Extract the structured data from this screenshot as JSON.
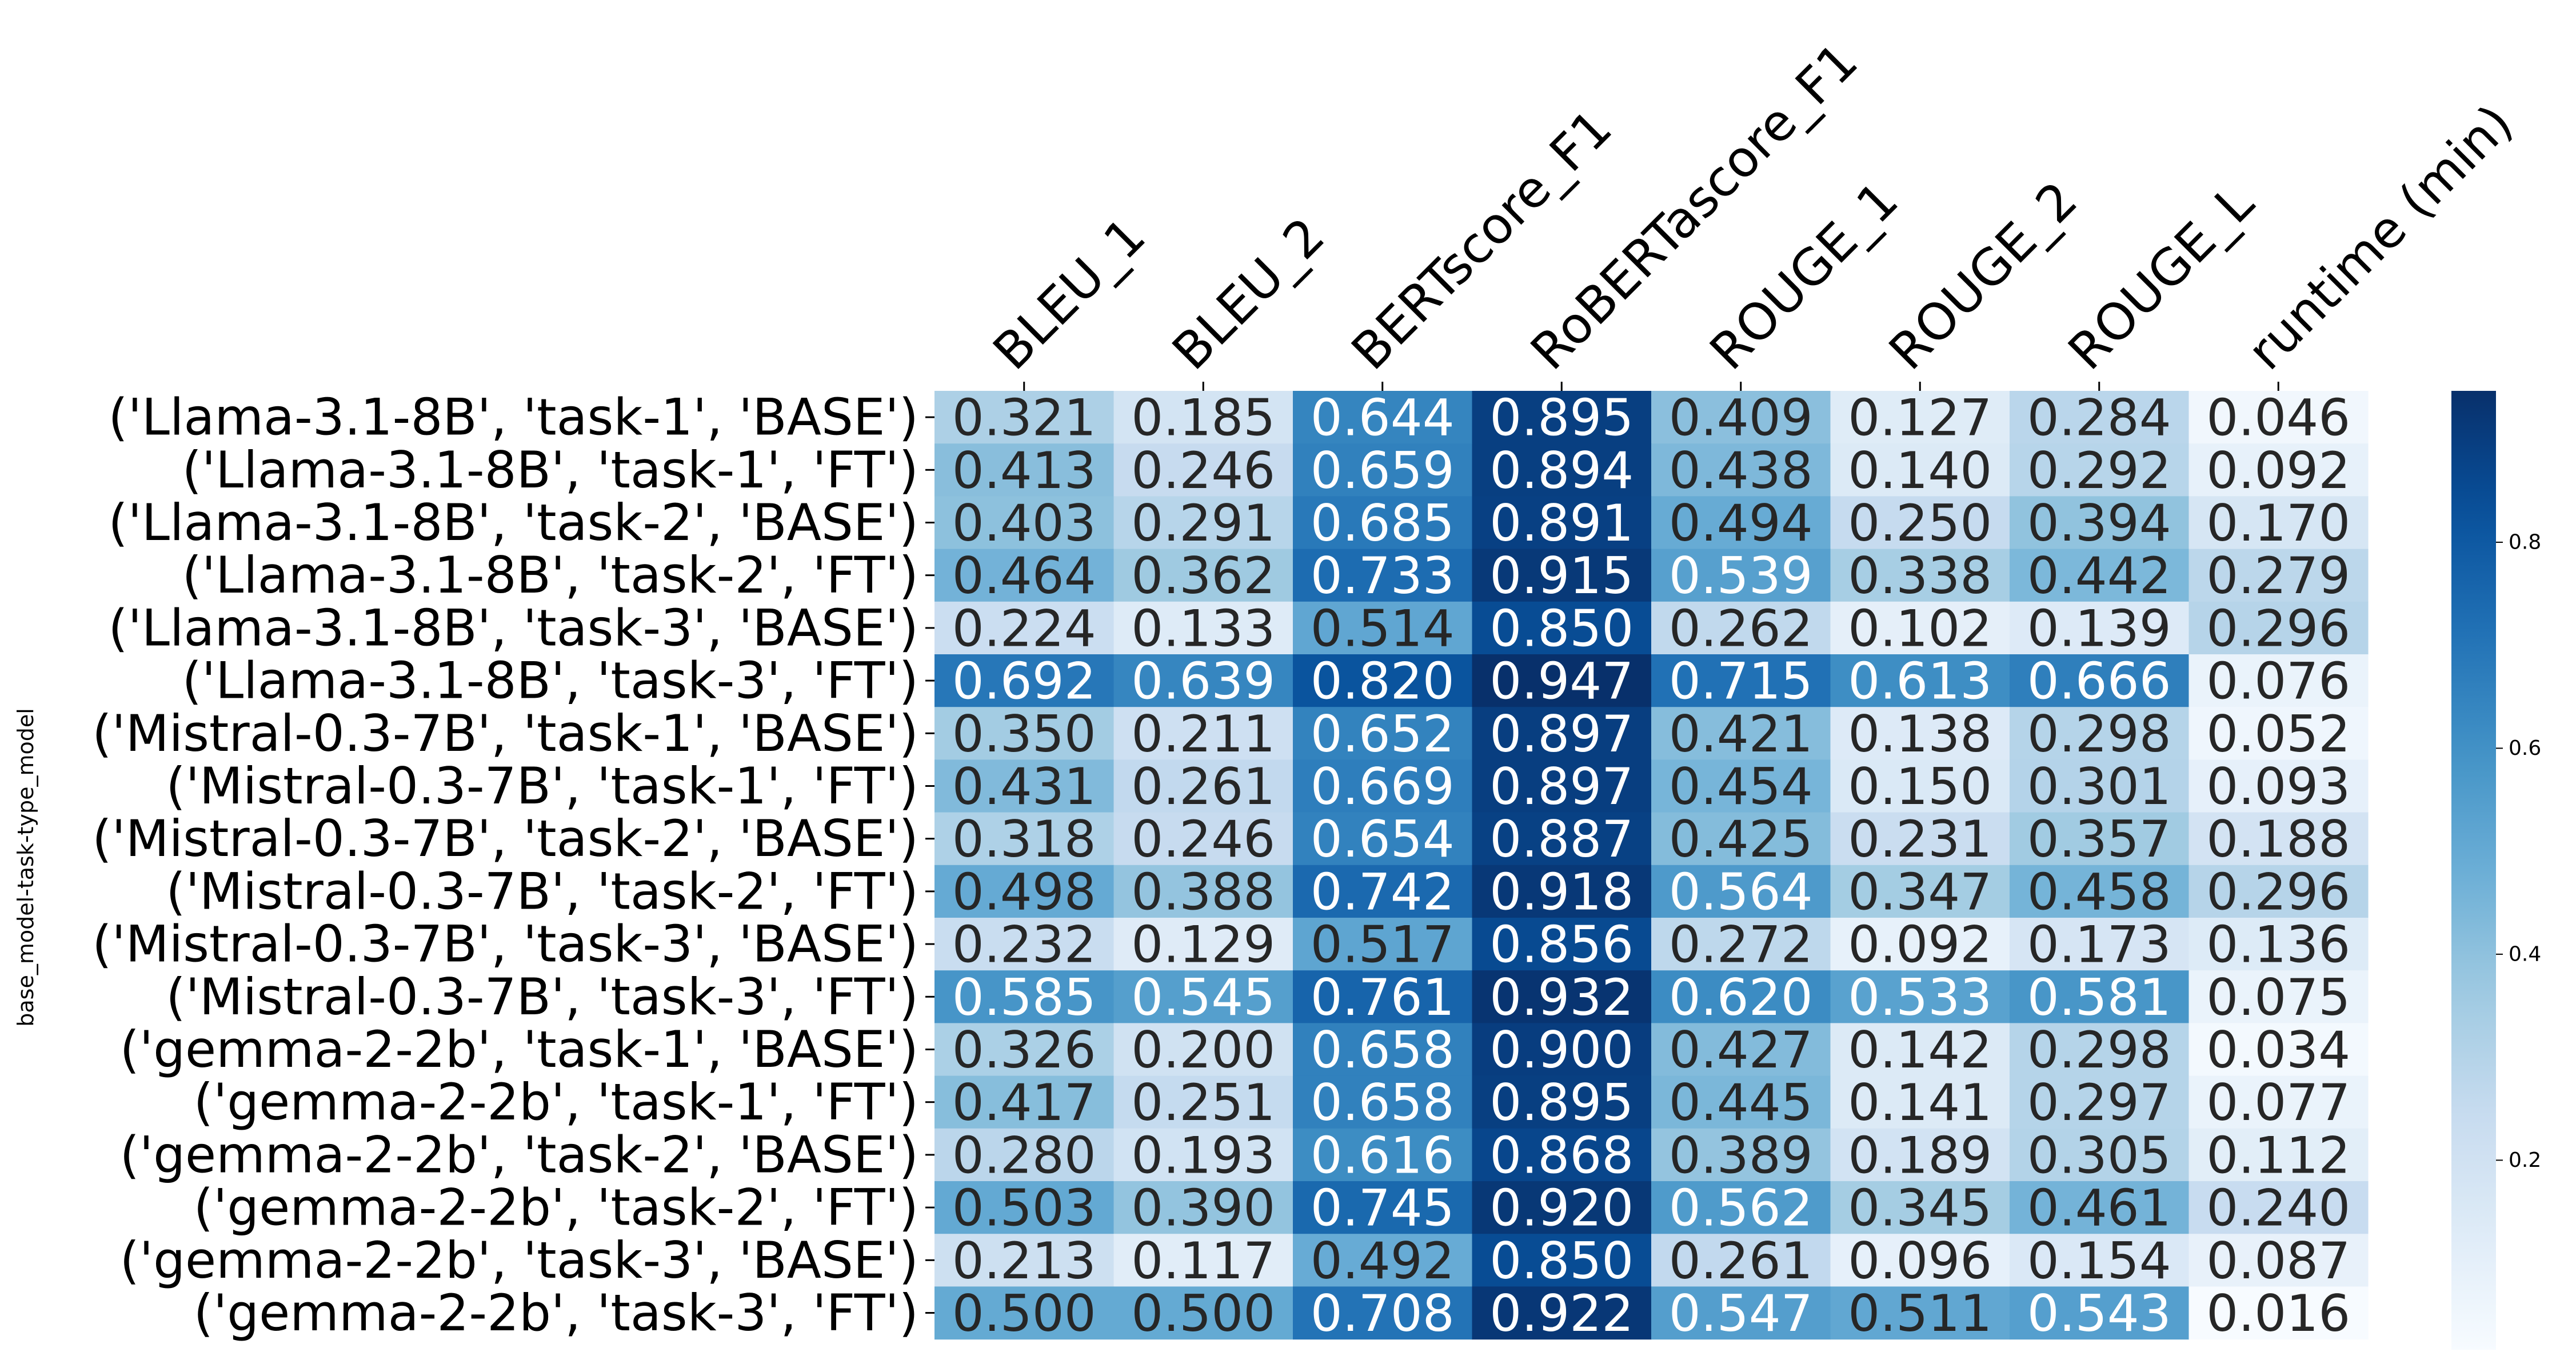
{
  "chart_data": {
    "type": "heatmap",
    "ylabel": "base_model-task-type_model",
    "columns": [
      "BLEU_1",
      "BLEU_2",
      "BERTscore_F1",
      "RoBERTascore_F1",
      "ROUGE_1",
      "ROUGE_2",
      "ROUGE_L",
      "runtime (min)"
    ],
    "rows": [
      "('Llama-3.1-8B', 'task-1', 'BASE')",
      "('Llama-3.1-8B', 'task-1', 'FT')",
      "('Llama-3.1-8B', 'task-2', 'BASE')",
      "('Llama-3.1-8B', 'task-2', 'FT')",
      "('Llama-3.1-8B', 'task-3', 'BASE')",
      "('Llama-3.1-8B', 'task-3', 'FT')",
      "('Mistral-0.3-7B', 'task-1', 'BASE')",
      "('Mistral-0.3-7B', 'task-1', 'FT')",
      "('Mistral-0.3-7B', 'task-2', 'BASE')",
      "('Mistral-0.3-7B', 'task-2', 'FT')",
      "('Mistral-0.3-7B', 'task-3', 'BASE')",
      "('Mistral-0.3-7B', 'task-3', 'FT')",
      "('gemma-2-2b', 'task-1', 'BASE')",
      "('gemma-2-2b', 'task-1', 'FT')",
      "('gemma-2-2b', 'task-2', 'BASE')",
      "('gemma-2-2b', 'task-2', 'FT')",
      "('gemma-2-2b', 'task-3', 'BASE')",
      "('gemma-2-2b', 'task-3', 'FT')"
    ],
    "values": [
      [
        0.321,
        0.185,
        0.644,
        0.895,
        0.409,
        0.127,
        0.284,
        0.046
      ],
      [
        0.413,
        0.246,
        0.659,
        0.894,
        0.438,
        0.14,
        0.292,
        0.092
      ],
      [
        0.403,
        0.291,
        0.685,
        0.891,
        0.494,
        0.25,
        0.394,
        0.17
      ],
      [
        0.464,
        0.362,
        0.733,
        0.915,
        0.539,
        0.338,
        0.442,
        0.279
      ],
      [
        0.224,
        0.133,
        0.514,
        0.85,
        0.262,
        0.102,
        0.139,
        0.296
      ],
      [
        0.692,
        0.639,
        0.82,
        0.947,
        0.715,
        0.613,
        0.666,
        0.076
      ],
      [
        0.35,
        0.211,
        0.652,
        0.897,
        0.421,
        0.138,
        0.298,
        0.052
      ],
      [
        0.431,
        0.261,
        0.669,
        0.897,
        0.454,
        0.15,
        0.301,
        0.093
      ],
      [
        0.318,
        0.246,
        0.654,
        0.887,
        0.425,
        0.231,
        0.357,
        0.188
      ],
      [
        0.498,
        0.388,
        0.742,
        0.918,
        0.564,
        0.347,
        0.458,
        0.296
      ],
      [
        0.232,
        0.129,
        0.517,
        0.856,
        0.272,
        0.092,
        0.173,
        0.136
      ],
      [
        0.585,
        0.545,
        0.761,
        0.932,
        0.62,
        0.533,
        0.581,
        0.075
      ],
      [
        0.326,
        0.2,
        0.658,
        0.9,
        0.427,
        0.142,
        0.298,
        0.034
      ],
      [
        0.417,
        0.251,
        0.658,
        0.895,
        0.445,
        0.141,
        0.297,
        0.077
      ],
      [
        0.28,
        0.193,
        0.616,
        0.868,
        0.389,
        0.189,
        0.305,
        0.112
      ],
      [
        0.503,
        0.39,
        0.745,
        0.92,
        0.562,
        0.345,
        0.461,
        0.24
      ],
      [
        0.213,
        0.117,
        0.492,
        0.85,
        0.261,
        0.096,
        0.154,
        0.087
      ],
      [
        0.5,
        0.5,
        0.708,
        0.922,
        0.547,
        0.511,
        0.543,
        0.016
      ]
    ],
    "value_format": "3 decimals",
    "colormap": "Blues",
    "vmin": 0.016,
    "vmax": 0.947,
    "colorbar_ticks": [
      0.2,
      0.4,
      0.6,
      0.8
    ],
    "colorbar_tick_labels": [
      "0.2",
      "0.4",
      "0.6",
      "0.8"
    ],
    "column_label_rotation": "45 degrees",
    "grid": false,
    "legend": "colorbar at right"
  }
}
